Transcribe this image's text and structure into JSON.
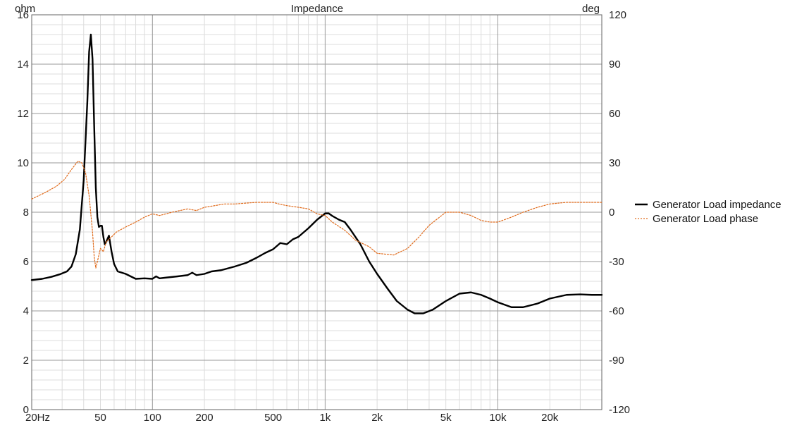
{
  "chart_data": {
    "type": "line",
    "title": "Impedance",
    "ylabel_left": "ohm",
    "ylabel_right": "deg",
    "x_scale": "log",
    "xlim": [
      20,
      40000
    ],
    "ylim_left": [
      0,
      16
    ],
    "ylim_right": [
      -120,
      120
    ],
    "grid": true,
    "legend_position": "right",
    "x_ticks": [
      {
        "value": 20,
        "label": "20Hz"
      },
      {
        "value": 50,
        "label": "50"
      },
      {
        "value": 100,
        "label": "100"
      },
      {
        "value": 200,
        "label": "200"
      },
      {
        "value": 500,
        "label": "500"
      },
      {
        "value": 1000,
        "label": "1k"
      },
      {
        "value": 2000,
        "label": "2k"
      },
      {
        "value": 5000,
        "label": "5k"
      },
      {
        "value": 10000,
        "label": "10k"
      },
      {
        "value": 20000,
        "label": "20k"
      }
    ],
    "y_ticks_left": [
      0,
      2,
      4,
      6,
      8,
      10,
      12,
      14,
      16
    ],
    "y_ticks_right": [
      -120,
      -90,
      -60,
      -30,
      0,
      30,
      60,
      90,
      120
    ],
    "series": [
      {
        "name": "Generator Load impedance",
        "axis": "left",
        "color": "#000000",
        "style": "solid",
        "points": [
          [
            20,
            5.25
          ],
          [
            23,
            5.3
          ],
          [
            26,
            5.38
          ],
          [
            29,
            5.48
          ],
          [
            32,
            5.6
          ],
          [
            34,
            5.8
          ],
          [
            36,
            6.3
          ],
          [
            38,
            7.3
          ],
          [
            40,
            9.3
          ],
          [
            42,
            12.5
          ],
          [
            43,
            14.5
          ],
          [
            44,
            15.2
          ],
          [
            45,
            14.2
          ],
          [
            46,
            11.5
          ],
          [
            47,
            9.0
          ],
          [
            48,
            7.8
          ],
          [
            49,
            7.4
          ],
          [
            50,
            7.45
          ],
          [
            51,
            7.45
          ],
          [
            52,
            7.0
          ],
          [
            53,
            6.7
          ],
          [
            54,
            6.8
          ],
          [
            56,
            7.05
          ],
          [
            58,
            6.4
          ],
          [
            60,
            5.9
          ],
          [
            63,
            5.6
          ],
          [
            70,
            5.5
          ],
          [
            80,
            5.3
          ],
          [
            90,
            5.32
          ],
          [
            100,
            5.3
          ],
          [
            105,
            5.4
          ],
          [
            110,
            5.32
          ],
          [
            120,
            5.35
          ],
          [
            140,
            5.4
          ],
          [
            160,
            5.45
          ],
          [
            170,
            5.55
          ],
          [
            180,
            5.45
          ],
          [
            200,
            5.5
          ],
          [
            220,
            5.6
          ],
          [
            250,
            5.65
          ],
          [
            300,
            5.8
          ],
          [
            350,
            5.95
          ],
          [
            400,
            6.15
          ],
          [
            450,
            6.35
          ],
          [
            500,
            6.5
          ],
          [
            550,
            6.75
          ],
          [
            600,
            6.7
          ],
          [
            650,
            6.9
          ],
          [
            700,
            7.0
          ],
          [
            800,
            7.35
          ],
          [
            900,
            7.7
          ],
          [
            1000,
            7.95
          ],
          [
            1050,
            7.95
          ],
          [
            1100,
            7.85
          ],
          [
            1200,
            7.7
          ],
          [
            1300,
            7.6
          ],
          [
            1400,
            7.3
          ],
          [
            1600,
            6.7
          ],
          [
            1800,
            6.0
          ],
          [
            2000,
            5.5
          ],
          [
            2300,
            4.9
          ],
          [
            2600,
            4.4
          ],
          [
            3000,
            4.05
          ],
          [
            3300,
            3.9
          ],
          [
            3700,
            3.9
          ],
          [
            4200,
            4.05
          ],
          [
            5000,
            4.4
          ],
          [
            6000,
            4.7
          ],
          [
            7000,
            4.75
          ],
          [
            8000,
            4.65
          ],
          [
            9000,
            4.5
          ],
          [
            10000,
            4.35
          ],
          [
            12000,
            4.15
          ],
          [
            14000,
            4.15
          ],
          [
            17000,
            4.3
          ],
          [
            20000,
            4.5
          ],
          [
            25000,
            4.65
          ],
          [
            30000,
            4.67
          ],
          [
            35000,
            4.65
          ],
          [
            40000,
            4.65
          ]
        ]
      },
      {
        "name": "Generator Load phase",
        "axis": "right",
        "color": "#e06a1a",
        "style": "dotted",
        "points": [
          [
            20,
            8
          ],
          [
            24,
            12
          ],
          [
            28,
            16
          ],
          [
            31,
            20
          ],
          [
            34,
            26
          ],
          [
            37,
            31
          ],
          [
            39,
            30
          ],
          [
            41,
            24
          ],
          [
            43,
            10
          ],
          [
            45,
            -12
          ],
          [
            46,
            -27
          ],
          [
            47,
            -34
          ],
          [
            48,
            -30
          ],
          [
            50,
            -22
          ],
          [
            52,
            -24
          ],
          [
            54,
            -18
          ],
          [
            58,
            -15
          ],
          [
            62,
            -12
          ],
          [
            70,
            -9
          ],
          [
            80,
            -6
          ],
          [
            90,
            -3
          ],
          [
            100,
            -1
          ],
          [
            110,
            -2
          ],
          [
            130,
            0
          ],
          [
            160,
            2
          ],
          [
            180,
            1
          ],
          [
            200,
            3
          ],
          [
            230,
            4
          ],
          [
            260,
            5
          ],
          [
            300,
            5
          ],
          [
            400,
            6
          ],
          [
            500,
            6
          ],
          [
            540,
            5
          ],
          [
            600,
            4
          ],
          [
            700,
            3
          ],
          [
            800,
            2
          ],
          [
            900,
            -1
          ],
          [
            1000,
            -2
          ],
          [
            1100,
            -6
          ],
          [
            1300,
            -11
          ],
          [
            1500,
            -17
          ],
          [
            1800,
            -21
          ],
          [
            2000,
            -25
          ],
          [
            2500,
            -26
          ],
          [
            3000,
            -22
          ],
          [
            3500,
            -15
          ],
          [
            4000,
            -8
          ],
          [
            5000,
            0
          ],
          [
            5500,
            0
          ],
          [
            6000,
            0
          ],
          [
            7000,
            -2
          ],
          [
            8000,
            -5
          ],
          [
            9000,
            -6
          ],
          [
            10000,
            -6
          ],
          [
            12000,
            -3
          ],
          [
            14000,
            0
          ],
          [
            17000,
            3
          ],
          [
            20000,
            5
          ],
          [
            25000,
            6
          ],
          [
            30000,
            6
          ],
          [
            35000,
            6
          ],
          [
            40000,
            6
          ]
        ]
      }
    ]
  }
}
